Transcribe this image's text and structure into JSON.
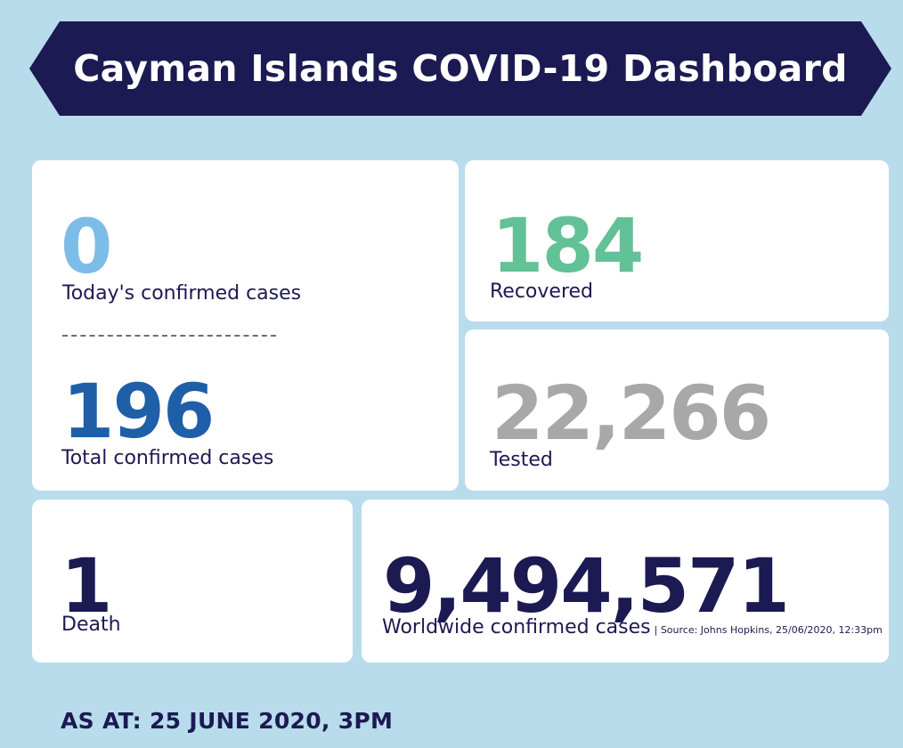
{
  "header": {
    "title": "Cayman Islands COVID-19 Dashboard",
    "color": "#1c1a52"
  },
  "stats": {
    "today_confirmed": {
      "value": "0",
      "label": "Today's confirmed cases",
      "color": "#7bbde6"
    },
    "total_confirmed": {
      "value": "196",
      "label": "Total confirmed cases",
      "color": "#1f5fa8"
    },
    "recovered": {
      "value": "184",
      "label": "Recovered",
      "color": "#62c196"
    },
    "tested": {
      "value": "22,266",
      "label": "Tested",
      "color": "#a8a8a8"
    },
    "death": {
      "value": "1",
      "label": "Death",
      "color": "#1c1a52"
    },
    "worldwide": {
      "value": "9,494,571",
      "label": "Worldwide confirmed cases",
      "source": "| Source: Johns Hopkins, 25/06/2020, 12:33pm",
      "color": "#1c1a52"
    }
  },
  "footer": {
    "as_at": "AS AT: 25 JUNE 2020, 3PM"
  }
}
